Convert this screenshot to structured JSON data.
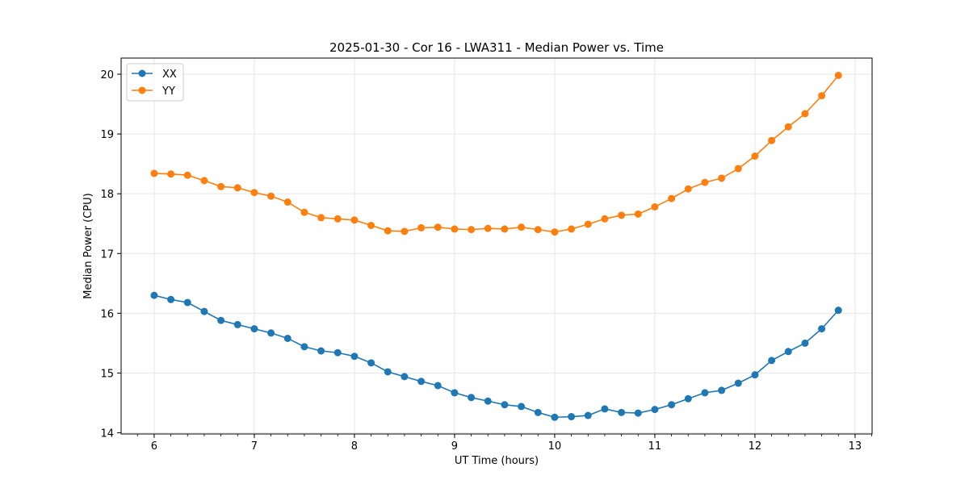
{
  "chart_data": {
    "type": "line",
    "title": "2025-01-30 - Cor 16 - LWA311 - Median Power vs. Time",
    "xlabel": "UT Time (hours)",
    "ylabel": "Median Power (CPU)",
    "xlim": [
      5.67,
      13.17
    ],
    "ylim": [
      13.98,
      20.27
    ],
    "xticks": [
      6,
      7,
      8,
      9,
      10,
      11,
      12,
      13
    ],
    "yticks": [
      14,
      15,
      16,
      17,
      18,
      19,
      20
    ],
    "grid": true,
    "legend_position": "top-left",
    "x": [
      6.0,
      6.1667,
      6.3333,
      6.5,
      6.6667,
      6.8333,
      7.0,
      7.1667,
      7.3333,
      7.5,
      7.6667,
      7.8333,
      8.0,
      8.1667,
      8.3333,
      8.5,
      8.6667,
      8.8333,
      9.0,
      9.1667,
      9.3333,
      9.5,
      9.6667,
      9.8333,
      10.0,
      10.1667,
      10.3333,
      10.5,
      10.6667,
      10.8333,
      11.0,
      11.1667,
      11.3333,
      11.5,
      11.6667,
      11.8333,
      12.0,
      12.1667,
      12.3333,
      12.5,
      12.6667,
      12.8333
    ],
    "series": [
      {
        "name": "XX",
        "color": "#1f77b4",
        "values": [
          16.3,
          16.23,
          16.18,
          16.03,
          15.88,
          15.81,
          15.74,
          15.67,
          15.58,
          15.44,
          15.37,
          15.34,
          15.28,
          15.17,
          15.02,
          14.94,
          14.86,
          14.79,
          14.67,
          14.59,
          14.53,
          14.47,
          14.44,
          14.34,
          14.26,
          14.27,
          14.29,
          14.4,
          14.34,
          14.33,
          14.39,
          14.47,
          14.57,
          14.67,
          14.71,
          14.83,
          14.97,
          15.21,
          15.36,
          15.5,
          15.74,
          16.05
        ]
      },
      {
        "name": "YY",
        "color": "#ff7f0e",
        "values": [
          18.34,
          18.33,
          18.31,
          18.22,
          18.12,
          18.1,
          18.02,
          17.96,
          17.86,
          17.69,
          17.6,
          17.58,
          17.56,
          17.47,
          17.38,
          17.37,
          17.43,
          17.44,
          17.41,
          17.4,
          17.42,
          17.41,
          17.44,
          17.4,
          17.36,
          17.41,
          17.49,
          17.58,
          17.64,
          17.66,
          17.78,
          17.92,
          18.08,
          18.19,
          18.26,
          18.42,
          18.63,
          18.89,
          19.12,
          19.34,
          19.64,
          19.98
        ]
      }
    ]
  }
}
